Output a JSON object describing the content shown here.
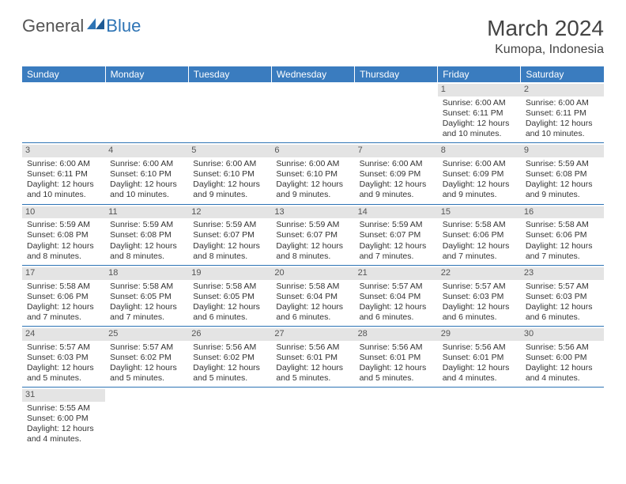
{
  "logo": {
    "text1": "General",
    "text2": "Blue"
  },
  "title": "March 2024",
  "location": "Kumopa, Indonesia",
  "colors": {
    "header_bg": "#3a7cbf",
    "header_fg": "#ffffff",
    "daynum_bg": "#e4e4e4",
    "cell_border": "#2e74b5",
    "logo_gray": "#555555",
    "logo_blue": "#2e74b5"
  },
  "weekdays": [
    "Sunday",
    "Monday",
    "Tuesday",
    "Wednesday",
    "Thursday",
    "Friday",
    "Saturday"
  ],
  "cells": [
    {
      "day": "",
      "sunrise": "",
      "sunset": "",
      "daylight1": "",
      "daylight2": ""
    },
    {
      "day": "",
      "sunrise": "",
      "sunset": "",
      "daylight1": "",
      "daylight2": ""
    },
    {
      "day": "",
      "sunrise": "",
      "sunset": "",
      "daylight1": "",
      "daylight2": ""
    },
    {
      "day": "",
      "sunrise": "",
      "sunset": "",
      "daylight1": "",
      "daylight2": ""
    },
    {
      "day": "",
      "sunrise": "",
      "sunset": "",
      "daylight1": "",
      "daylight2": ""
    },
    {
      "day": "1",
      "sunrise": "Sunrise: 6:00 AM",
      "sunset": "Sunset: 6:11 PM",
      "daylight1": "Daylight: 12 hours",
      "daylight2": "and 10 minutes."
    },
    {
      "day": "2",
      "sunrise": "Sunrise: 6:00 AM",
      "sunset": "Sunset: 6:11 PM",
      "daylight1": "Daylight: 12 hours",
      "daylight2": "and 10 minutes."
    },
    {
      "day": "3",
      "sunrise": "Sunrise: 6:00 AM",
      "sunset": "Sunset: 6:11 PM",
      "daylight1": "Daylight: 12 hours",
      "daylight2": "and 10 minutes."
    },
    {
      "day": "4",
      "sunrise": "Sunrise: 6:00 AM",
      "sunset": "Sunset: 6:10 PM",
      "daylight1": "Daylight: 12 hours",
      "daylight2": "and 10 minutes."
    },
    {
      "day": "5",
      "sunrise": "Sunrise: 6:00 AM",
      "sunset": "Sunset: 6:10 PM",
      "daylight1": "Daylight: 12 hours",
      "daylight2": "and 9 minutes."
    },
    {
      "day": "6",
      "sunrise": "Sunrise: 6:00 AM",
      "sunset": "Sunset: 6:10 PM",
      "daylight1": "Daylight: 12 hours",
      "daylight2": "and 9 minutes."
    },
    {
      "day": "7",
      "sunrise": "Sunrise: 6:00 AM",
      "sunset": "Sunset: 6:09 PM",
      "daylight1": "Daylight: 12 hours",
      "daylight2": "and 9 minutes."
    },
    {
      "day": "8",
      "sunrise": "Sunrise: 6:00 AM",
      "sunset": "Sunset: 6:09 PM",
      "daylight1": "Daylight: 12 hours",
      "daylight2": "and 9 minutes."
    },
    {
      "day": "9",
      "sunrise": "Sunrise: 5:59 AM",
      "sunset": "Sunset: 6:08 PM",
      "daylight1": "Daylight: 12 hours",
      "daylight2": "and 9 minutes."
    },
    {
      "day": "10",
      "sunrise": "Sunrise: 5:59 AM",
      "sunset": "Sunset: 6:08 PM",
      "daylight1": "Daylight: 12 hours",
      "daylight2": "and 8 minutes."
    },
    {
      "day": "11",
      "sunrise": "Sunrise: 5:59 AM",
      "sunset": "Sunset: 6:08 PM",
      "daylight1": "Daylight: 12 hours",
      "daylight2": "and 8 minutes."
    },
    {
      "day": "12",
      "sunrise": "Sunrise: 5:59 AM",
      "sunset": "Sunset: 6:07 PM",
      "daylight1": "Daylight: 12 hours",
      "daylight2": "and 8 minutes."
    },
    {
      "day": "13",
      "sunrise": "Sunrise: 5:59 AM",
      "sunset": "Sunset: 6:07 PM",
      "daylight1": "Daylight: 12 hours",
      "daylight2": "and 8 minutes."
    },
    {
      "day": "14",
      "sunrise": "Sunrise: 5:59 AM",
      "sunset": "Sunset: 6:07 PM",
      "daylight1": "Daylight: 12 hours",
      "daylight2": "and 7 minutes."
    },
    {
      "day": "15",
      "sunrise": "Sunrise: 5:58 AM",
      "sunset": "Sunset: 6:06 PM",
      "daylight1": "Daylight: 12 hours",
      "daylight2": "and 7 minutes."
    },
    {
      "day": "16",
      "sunrise": "Sunrise: 5:58 AM",
      "sunset": "Sunset: 6:06 PM",
      "daylight1": "Daylight: 12 hours",
      "daylight2": "and 7 minutes."
    },
    {
      "day": "17",
      "sunrise": "Sunrise: 5:58 AM",
      "sunset": "Sunset: 6:06 PM",
      "daylight1": "Daylight: 12 hours",
      "daylight2": "and 7 minutes."
    },
    {
      "day": "18",
      "sunrise": "Sunrise: 5:58 AM",
      "sunset": "Sunset: 6:05 PM",
      "daylight1": "Daylight: 12 hours",
      "daylight2": "and 7 minutes."
    },
    {
      "day": "19",
      "sunrise": "Sunrise: 5:58 AM",
      "sunset": "Sunset: 6:05 PM",
      "daylight1": "Daylight: 12 hours",
      "daylight2": "and 6 minutes."
    },
    {
      "day": "20",
      "sunrise": "Sunrise: 5:58 AM",
      "sunset": "Sunset: 6:04 PM",
      "daylight1": "Daylight: 12 hours",
      "daylight2": "and 6 minutes."
    },
    {
      "day": "21",
      "sunrise": "Sunrise: 5:57 AM",
      "sunset": "Sunset: 6:04 PM",
      "daylight1": "Daylight: 12 hours",
      "daylight2": "and 6 minutes."
    },
    {
      "day": "22",
      "sunrise": "Sunrise: 5:57 AM",
      "sunset": "Sunset: 6:03 PM",
      "daylight1": "Daylight: 12 hours",
      "daylight2": "and 6 minutes."
    },
    {
      "day": "23",
      "sunrise": "Sunrise: 5:57 AM",
      "sunset": "Sunset: 6:03 PM",
      "daylight1": "Daylight: 12 hours",
      "daylight2": "and 6 minutes."
    },
    {
      "day": "24",
      "sunrise": "Sunrise: 5:57 AM",
      "sunset": "Sunset: 6:03 PM",
      "daylight1": "Daylight: 12 hours",
      "daylight2": "and 5 minutes."
    },
    {
      "day": "25",
      "sunrise": "Sunrise: 5:57 AM",
      "sunset": "Sunset: 6:02 PM",
      "daylight1": "Daylight: 12 hours",
      "daylight2": "and 5 minutes."
    },
    {
      "day": "26",
      "sunrise": "Sunrise: 5:56 AM",
      "sunset": "Sunset: 6:02 PM",
      "daylight1": "Daylight: 12 hours",
      "daylight2": "and 5 minutes."
    },
    {
      "day": "27",
      "sunrise": "Sunrise: 5:56 AM",
      "sunset": "Sunset: 6:01 PM",
      "daylight1": "Daylight: 12 hours",
      "daylight2": "and 5 minutes."
    },
    {
      "day": "28",
      "sunrise": "Sunrise: 5:56 AM",
      "sunset": "Sunset: 6:01 PM",
      "daylight1": "Daylight: 12 hours",
      "daylight2": "and 5 minutes."
    },
    {
      "day": "29",
      "sunrise": "Sunrise: 5:56 AM",
      "sunset": "Sunset: 6:01 PM",
      "daylight1": "Daylight: 12 hours",
      "daylight2": "and 4 minutes."
    },
    {
      "day": "30",
      "sunrise": "Sunrise: 5:56 AM",
      "sunset": "Sunset: 6:00 PM",
      "daylight1": "Daylight: 12 hours",
      "daylight2": "and 4 minutes."
    },
    {
      "day": "31",
      "sunrise": "Sunrise: 5:55 AM",
      "sunset": "Sunset: 6:00 PM",
      "daylight1": "Daylight: 12 hours",
      "daylight2": "and 4 minutes."
    },
    {
      "day": "",
      "sunrise": "",
      "sunset": "",
      "daylight1": "",
      "daylight2": ""
    },
    {
      "day": "",
      "sunrise": "",
      "sunset": "",
      "daylight1": "",
      "daylight2": ""
    },
    {
      "day": "",
      "sunrise": "",
      "sunset": "",
      "daylight1": "",
      "daylight2": ""
    },
    {
      "day": "",
      "sunrise": "",
      "sunset": "",
      "daylight1": "",
      "daylight2": ""
    },
    {
      "day": "",
      "sunrise": "",
      "sunset": "",
      "daylight1": "",
      "daylight2": ""
    },
    {
      "day": "",
      "sunrise": "",
      "sunset": "",
      "daylight1": "",
      "daylight2": ""
    }
  ]
}
